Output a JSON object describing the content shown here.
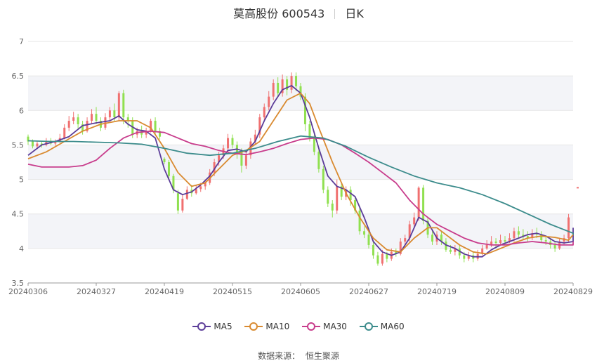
{
  "title": {
    "name": "莫高股份 600543",
    "period": "日K"
  },
  "source": {
    "label": "数据来源：",
    "value": "恒生聚源"
  },
  "legend": [
    {
      "label": "MA5",
      "color": "#5b3c98"
    },
    {
      "label": "MA10",
      "color": "#d98a30"
    },
    {
      "label": "MA30",
      "color": "#c83c8c"
    },
    {
      "label": "MA60",
      "color": "#3c8c8c"
    }
  ],
  "chart_data": {
    "type": "candlestick",
    "ylim": [
      3.5,
      7
    ],
    "yticks": [
      3.5,
      4,
      4.5,
      5,
      5.5,
      6,
      6.5,
      7
    ],
    "xticks": [
      "20240306",
      "20240327",
      "20240419",
      "20240515",
      "20240605",
      "20240627",
      "20240719",
      "20240809",
      "20240829"
    ],
    "x_tick_index": [
      0,
      15,
      30,
      45,
      60,
      75,
      90,
      105,
      120
    ],
    "up_color": "#f07070",
    "down_color": "#90e050",
    "candles": [
      [
        5.62,
        5.55,
        5.65,
        5.5
      ],
      [
        5.55,
        5.48,
        5.58,
        5.45
      ],
      [
        5.48,
        5.52,
        5.56,
        5.44
      ],
      [
        5.52,
        5.5,
        5.56,
        5.46
      ],
      [
        5.5,
        5.56,
        5.6,
        5.48
      ],
      [
        5.56,
        5.52,
        5.6,
        5.5
      ],
      [
        5.52,
        5.55,
        5.58,
        5.49
      ],
      [
        5.55,
        5.6,
        5.66,
        5.53
      ],
      [
        5.6,
        5.75,
        5.8,
        5.58
      ],
      [
        5.75,
        5.85,
        5.92,
        5.7
      ],
      [
        5.85,
        5.9,
        5.98,
        5.8
      ],
      [
        5.9,
        5.8,
        5.95,
        5.74
      ],
      [
        5.8,
        5.7,
        5.85,
        5.65
      ],
      [
        5.7,
        5.85,
        5.9,
        5.68
      ],
      [
        5.85,
        5.95,
        6.02,
        5.8
      ],
      [
        5.95,
        5.85,
        6.05,
        5.8
      ],
      [
        5.85,
        5.75,
        5.9,
        5.7
      ],
      [
        5.75,
        5.9,
        5.96,
        5.72
      ],
      [
        5.9,
        6.0,
        6.05,
        5.85
      ],
      [
        6.0,
        5.9,
        6.1,
        5.85
      ],
      [
        5.9,
        6.25,
        6.28,
        5.85
      ],
      [
        6.25,
        5.9,
        6.3,
        5.8
      ],
      [
        5.9,
        5.85,
        5.95,
        5.75
      ],
      [
        5.85,
        5.65,
        5.9,
        5.6
      ],
      [
        5.65,
        5.7,
        5.75,
        5.6
      ],
      [
        5.7,
        5.65,
        5.78,
        5.6
      ],
      [
        5.65,
        5.7,
        5.75,
        5.6
      ],
      [
        5.7,
        5.85,
        5.88,
        5.68
      ],
      [
        5.85,
        5.7,
        5.9,
        5.65
      ],
      [
        5.7,
        5.62,
        5.75,
        5.58
      ],
      [
        5.3,
        5.25,
        5.32,
        5.22
      ],
      [
        5.25,
        5.05,
        5.28,
        5.0
      ],
      [
        5.05,
        4.85,
        5.08,
        4.8
      ],
      [
        4.8,
        4.55,
        4.85,
        4.5
      ],
      [
        4.55,
        4.72,
        4.78,
        4.52
      ],
      [
        4.72,
        4.85,
        4.9,
        4.7
      ],
      [
        4.85,
        4.8,
        4.92,
        4.75
      ],
      [
        4.8,
        4.86,
        4.92,
        4.78
      ],
      [
        4.86,
        4.9,
        4.95,
        4.82
      ],
      [
        4.9,
        4.95,
        5.0,
        4.85
      ],
      [
        4.95,
        5.1,
        5.15,
        4.92
      ],
      [
        5.1,
        5.25,
        5.3,
        5.05
      ],
      [
        5.25,
        5.35,
        5.4,
        5.2
      ],
      [
        5.35,
        5.45,
        5.5,
        5.3
      ],
      [
        5.45,
        5.6,
        5.66,
        5.4
      ],
      [
        5.6,
        5.5,
        5.65,
        5.45
      ],
      [
        5.5,
        5.4,
        5.55,
        5.3
      ],
      [
        5.4,
        5.2,
        5.45,
        5.1
      ],
      [
        5.2,
        5.35,
        5.4,
        5.15
      ],
      [
        5.35,
        5.55,
        5.6,
        5.3
      ],
      [
        5.55,
        5.65,
        5.72,
        5.5
      ],
      [
        5.65,
        5.9,
        5.95,
        5.6
      ],
      [
        5.9,
        6.05,
        6.1,
        5.85
      ],
      [
        6.05,
        6.2,
        6.28,
        6.0
      ],
      [
        6.2,
        6.4,
        6.45,
        6.15
      ],
      [
        6.4,
        6.25,
        6.48,
        6.2
      ],
      [
        6.25,
        6.45,
        6.52,
        6.2
      ],
      [
        6.45,
        6.3,
        6.5,
        6.22
      ],
      [
        6.3,
        6.5,
        6.55,
        6.25
      ],
      [
        6.5,
        6.35,
        6.55,
        6.28
      ],
      [
        6.35,
        6.2,
        6.4,
        6.15
      ],
      [
        6.2,
        5.8,
        6.25,
        5.7
      ],
      [
        5.8,
        5.6,
        5.85,
        5.55
      ],
      [
        5.6,
        5.4,
        5.65,
        5.35
      ],
      [
        5.4,
        5.15,
        5.45,
        5.1
      ],
      [
        5.15,
        4.85,
        5.2,
        4.8
      ],
      [
        4.85,
        4.65,
        4.9,
        4.6
      ],
      [
        4.65,
        4.55,
        4.7,
        4.45
      ],
      [
        4.55,
        4.9,
        5.0,
        4.5
      ],
      [
        4.9,
        4.75,
        4.95,
        4.7
      ],
      [
        4.75,
        4.85,
        4.9,
        4.7
      ],
      [
        4.85,
        4.7,
        4.9,
        4.62
      ],
      [
        4.7,
        4.55,
        4.75,
        4.5
      ],
      [
        4.55,
        4.25,
        4.6,
        4.2
      ],
      [
        4.25,
        4.2,
        4.32,
        4.15
      ],
      [
        4.2,
        4.05,
        4.25,
        4.0
      ],
      [
        4.05,
        3.9,
        4.1,
        3.85
      ],
      [
        3.9,
        3.78,
        3.95,
        3.75
      ],
      [
        3.78,
        3.92,
        3.98,
        3.75
      ],
      [
        3.92,
        3.85,
        3.95,
        3.8
      ],
      [
        3.85,
        3.95,
        4.0,
        3.82
      ],
      [
        3.95,
        3.92,
        4.0,
        3.88
      ],
      [
        3.92,
        4.1,
        4.15,
        3.9
      ],
      [
        4.1,
        4.15,
        4.2,
        4.05
      ],
      [
        4.15,
        4.35,
        4.4,
        4.1
      ],
      [
        4.35,
        4.45,
        4.52,
        4.3
      ],
      [
        4.45,
        4.88,
        4.9,
        4.4
      ],
      [
        4.88,
        4.4,
        4.92,
        4.35
      ],
      [
        4.4,
        4.2,
        4.45,
        4.15
      ],
      [
        4.2,
        4.1,
        4.25,
        4.05
      ],
      [
        4.1,
        4.2,
        4.25,
        4.05
      ],
      [
        4.2,
        4.1,
        4.25,
        4.05
      ],
      [
        4.1,
        3.98,
        4.15,
        3.95
      ],
      [
        3.98,
        3.95,
        4.05,
        3.92
      ],
      [
        3.95,
        4.0,
        4.05,
        3.9
      ],
      [
        4.0,
        3.9,
        4.05,
        3.85
      ],
      [
        3.9,
        3.85,
        3.95,
        3.8
      ],
      [
        3.85,
        3.9,
        3.95,
        3.82
      ],
      [
        3.9,
        3.85,
        3.95,
        3.8
      ],
      [
        3.85,
        3.92,
        3.98,
        3.82
      ],
      [
        3.92,
        4.0,
        4.05,
        3.9
      ],
      [
        4.0,
        4.05,
        4.12,
        3.98
      ],
      [
        4.05,
        4.1,
        4.18,
        4.02
      ],
      [
        4.1,
        4.08,
        4.15,
        4.02
      ],
      [
        4.08,
        4.12,
        4.2,
        4.05
      ],
      [
        4.12,
        4.1,
        4.18,
        4.05
      ],
      [
        4.1,
        4.15,
        4.22,
        4.08
      ],
      [
        4.15,
        4.25,
        4.3,
        4.1
      ],
      [
        4.25,
        4.2,
        4.32,
        4.15
      ],
      [
        4.2,
        4.18,
        4.28,
        4.12
      ],
      [
        4.18,
        4.15,
        4.25,
        4.1
      ],
      [
        4.15,
        4.22,
        4.28,
        4.12
      ],
      [
        4.22,
        4.2,
        4.3,
        4.15
      ],
      [
        4.2,
        4.12,
        4.25,
        4.08
      ],
      [
        4.12,
        4.1,
        4.18,
        4.05
      ],
      [
        4.1,
        4.05,
        4.15,
        4.0
      ],
      [
        4.05,
        4.0,
        4.1,
        3.95
      ],
      [
        4.0,
        4.1,
        4.15,
        3.98
      ],
      [
        4.1,
        4.15,
        4.2,
        4.05
      ],
      [
        4.15,
        4.45,
        4.5,
        4.1
      ]
    ],
    "extra_candle": {
      "index": 121,
      "value": 4.88
    },
    "series": [
      {
        "name": "MA5",
        "color": "#5b3c98",
        "points": [
          [
            0,
            5.35
          ],
          [
            3,
            5.5
          ],
          [
            6,
            5.55
          ],
          [
            9,
            5.62
          ],
          [
            12,
            5.78
          ],
          [
            15,
            5.82
          ],
          [
            18,
            5.85
          ],
          [
            20,
            5.92
          ],
          [
            22,
            5.8
          ],
          [
            24,
            5.72
          ],
          [
            26,
            5.7
          ],
          [
            28,
            5.6
          ],
          [
            30,
            5.15
          ],
          [
            32,
            4.85
          ],
          [
            34,
            4.78
          ],
          [
            36,
            4.82
          ],
          [
            38,
            4.92
          ],
          [
            40,
            5.05
          ],
          [
            42,
            5.25
          ],
          [
            44,
            5.42
          ],
          [
            46,
            5.44
          ],
          [
            48,
            5.4
          ],
          [
            50,
            5.55
          ],
          [
            52,
            5.85
          ],
          [
            54,
            6.1
          ],
          [
            56,
            6.3
          ],
          [
            58,
            6.36
          ],
          [
            60,
            6.25
          ],
          [
            62,
            5.9
          ],
          [
            64,
            5.45
          ],
          [
            66,
            5.05
          ],
          [
            68,
            4.9
          ],
          [
            70,
            4.85
          ],
          [
            72,
            4.75
          ],
          [
            74,
            4.45
          ],
          [
            76,
            4.1
          ],
          [
            78,
            3.95
          ],
          [
            80,
            3.9
          ],
          [
            82,
            3.95
          ],
          [
            84,
            4.15
          ],
          [
            86,
            4.45
          ],
          [
            88,
            4.38
          ],
          [
            90,
            4.15
          ],
          [
            92,
            4.05
          ],
          [
            94,
            4.0
          ],
          [
            96,
            3.92
          ],
          [
            98,
            3.88
          ],
          [
            100,
            3.88
          ],
          [
            102,
            3.98
          ],
          [
            104,
            4.05
          ],
          [
            106,
            4.1
          ],
          [
            108,
            4.15
          ],
          [
            110,
            4.2
          ],
          [
            112,
            4.22
          ],
          [
            114,
            4.18
          ],
          [
            116,
            4.1
          ],
          [
            118,
            4.08
          ],
          [
            120,
            4.1
          ],
          [
            122,
            4.3
          ]
        ]
      },
      {
        "name": "MA10",
        "color": "#d98a30",
        "points": [
          [
            0,
            5.3
          ],
          [
            4,
            5.4
          ],
          [
            8,
            5.55
          ],
          [
            12,
            5.7
          ],
          [
            16,
            5.8
          ],
          [
            20,
            5.85
          ],
          [
            24,
            5.85
          ],
          [
            27,
            5.75
          ],
          [
            30,
            5.45
          ],
          [
            33,
            5.1
          ],
          [
            36,
            4.9
          ],
          [
            39,
            4.95
          ],
          [
            42,
            5.15
          ],
          [
            45,
            5.35
          ],
          [
            48,
            5.42
          ],
          [
            51,
            5.55
          ],
          [
            54,
            5.85
          ],
          [
            57,
            6.15
          ],
          [
            60,
            6.25
          ],
          [
            62,
            6.1
          ],
          [
            64,
            5.75
          ],
          [
            67,
            5.25
          ],
          [
            70,
            4.8
          ],
          [
            73,
            4.45
          ],
          [
            76,
            4.15
          ],
          [
            79,
            3.98
          ],
          [
            82,
            3.95
          ],
          [
            85,
            4.15
          ],
          [
            88,
            4.3
          ],
          [
            90,
            4.3
          ],
          [
            92,
            4.2
          ],
          [
            95,
            4.05
          ],
          [
            98,
            3.95
          ],
          [
            101,
            3.92
          ],
          [
            104,
            4.0
          ],
          [
            107,
            4.08
          ],
          [
            110,
            4.15
          ],
          [
            113,
            4.18
          ],
          [
            116,
            4.16
          ],
          [
            119,
            4.12
          ],
          [
            122,
            4.2
          ]
        ]
      },
      {
        "name": "MA30",
        "color": "#c83c8c",
        "points": [
          [
            0,
            5.22
          ],
          [
            3,
            5.18
          ],
          [
            6,
            5.18
          ],
          [
            9,
            5.18
          ],
          [
            12,
            5.2
          ],
          [
            15,
            5.28
          ],
          [
            18,
            5.45
          ],
          [
            21,
            5.6
          ],
          [
            24,
            5.68
          ],
          [
            27,
            5.7
          ],
          [
            30,
            5.68
          ],
          [
            33,
            5.6
          ],
          [
            36,
            5.52
          ],
          [
            39,
            5.48
          ],
          [
            42,
            5.42
          ],
          [
            45,
            5.38
          ],
          [
            48,
            5.36
          ],
          [
            51,
            5.4
          ],
          [
            54,
            5.45
          ],
          [
            57,
            5.52
          ],
          [
            60,
            5.58
          ],
          [
            63,
            5.6
          ],
          [
            66,
            5.58
          ],
          [
            69,
            5.5
          ],
          [
            72,
            5.38
          ],
          [
            75,
            5.25
          ],
          [
            78,
            5.1
          ],
          [
            81,
            4.95
          ],
          [
            84,
            4.7
          ],
          [
            87,
            4.5
          ],
          [
            90,
            4.35
          ],
          [
            93,
            4.25
          ],
          [
            96,
            4.15
          ],
          [
            99,
            4.08
          ],
          [
            102,
            4.05
          ],
          [
            105,
            4.05
          ],
          [
            108,
            4.08
          ],
          [
            111,
            4.1
          ],
          [
            114,
            4.08
          ],
          [
            117,
            4.05
          ],
          [
            120,
            4.05
          ],
          [
            122,
            4.1
          ]
        ]
      },
      {
        "name": "MA60",
        "color": "#3c8c8c",
        "points": [
          [
            0,
            5.56
          ],
          [
            5,
            5.55
          ],
          [
            10,
            5.55
          ],
          [
            15,
            5.54
          ],
          [
            20,
            5.53
          ],
          [
            25,
            5.51
          ],
          [
            30,
            5.45
          ],
          [
            35,
            5.38
          ],
          [
            40,
            5.35
          ],
          [
            45,
            5.38
          ],
          [
            50,
            5.45
          ],
          [
            55,
            5.55
          ],
          [
            60,
            5.63
          ],
          [
            65,
            5.6
          ],
          [
            70,
            5.48
          ],
          [
            75,
            5.32
          ],
          [
            80,
            5.18
          ],
          [
            85,
            5.05
          ],
          [
            90,
            4.95
          ],
          [
            95,
            4.88
          ],
          [
            100,
            4.78
          ],
          [
            105,
            4.65
          ],
          [
            110,
            4.5
          ],
          [
            115,
            4.35
          ],
          [
            120,
            4.22
          ],
          [
            122,
            4.2
          ]
        ]
      }
    ]
  }
}
